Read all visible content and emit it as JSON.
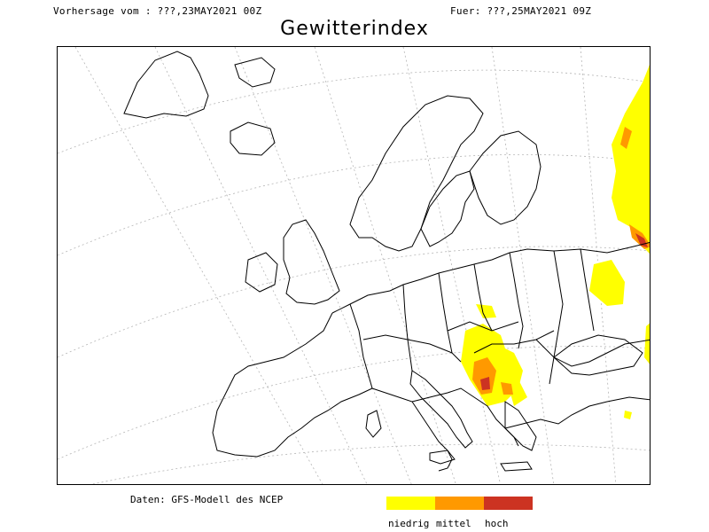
{
  "header": {
    "forecast_from": "Vorhersage vom : ???,23MAY2021 00Z",
    "valid_for": "Fuer: ???,25MAY2021 09Z"
  },
  "title": "Gewitterindex",
  "source": "Daten: GFS-Modell des NCEP",
  "legend": {
    "items": [
      {
        "label": "niedrig",
        "color": "#ffff00"
      },
      {
        "label": "mittel",
        "color": "#ff9900"
      },
      {
        "label": "hoch",
        "color": "#cc3322"
      }
    ]
  },
  "map": {
    "region": "Europe",
    "land_color": "#ffffff",
    "outline_color": "#000000",
    "graticule_color": "#aaaaaa"
  }
}
